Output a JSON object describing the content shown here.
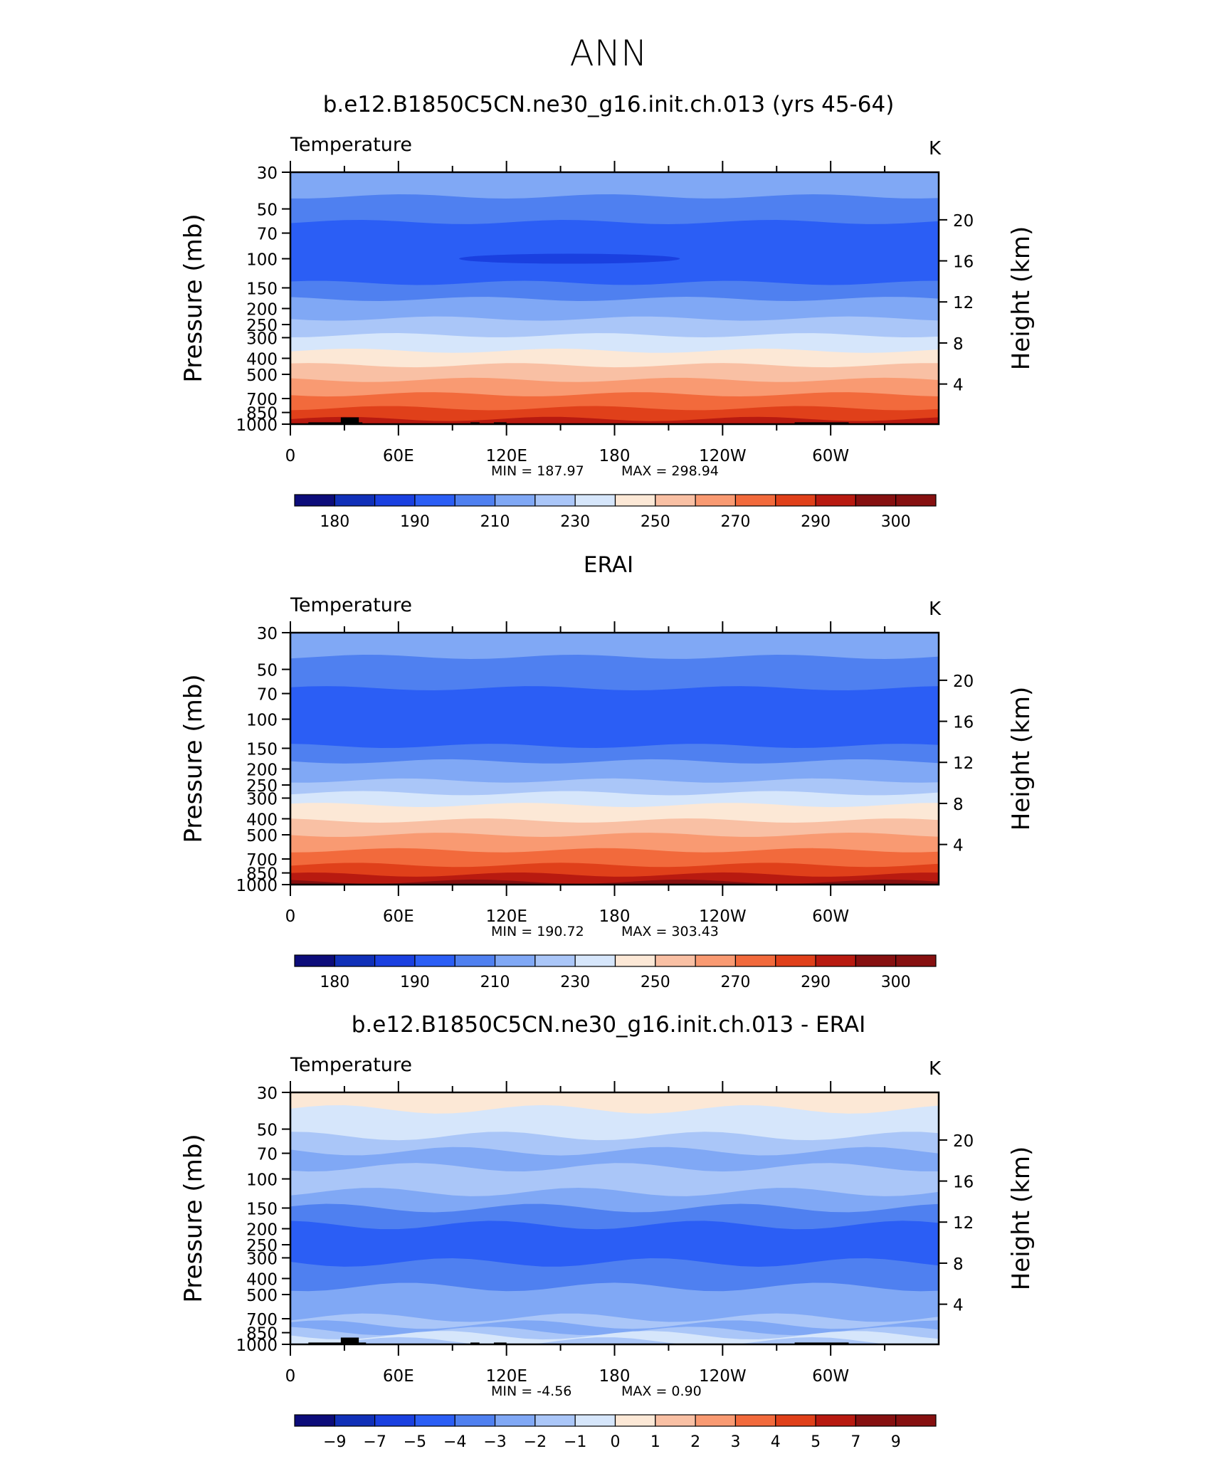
{
  "page_title": "ANN",
  "colors": {
    "bands13": [
      "#0c0c7a",
      "#1030b8",
      "#1a40e0",
      "#2b5ef5",
      "#4f80f0",
      "#80a8f5",
      "#aac6f8",
      "#d6e6fb",
      "#fce8d6",
      "#f9c0a4",
      "#f99a72",
      "#f26a3c",
      "#e0401a",
      "#b81a10",
      "#861010"
    ],
    "bands_diff": [
      "#0c0c7a",
      "#1030b8",
      "#1a40e0",
      "#2b5ef5",
      "#4f80f0",
      "#80a8f5",
      "#aac6f8",
      "#d6e6fb",
      "#fce8d6",
      "#f9c0a4",
      "#f99a72",
      "#f26a3c",
      "#e0401a",
      "#b81a10",
      "#861010"
    ],
    "topography": "#000000"
  },
  "chart_data": [
    {
      "type": "contour",
      "title": "b.e12.B1850C5CN.ne30_g16.init.ch.013 (yrs 45-64)",
      "variable": "Temperature",
      "units": "K",
      "ylabel": "Pressure  (mb)",
      "ylabel_right": "Height  (km)",
      "pressure_ticks": [
        "30",
        "50",
        "70",
        "100",
        "150",
        "200",
        "250",
        "300",
        "400",
        "500",
        "700",
        "850",
        "1000"
      ],
      "height_ticks": [
        "20",
        "16",
        "12",
        "8",
        "4"
      ],
      "lon_ticks": [
        "0",
        "60E",
        "120E",
        "180",
        "120W",
        "60W"
      ],
      "min_label": "MIN  =  187.97",
      "max_label": "MAX  =  298.94",
      "colorbar_labels": [
        "180",
        "190",
        "210",
        "230",
        "250",
        "270",
        "290",
        "300"
      ],
      "levels_K": [
        175,
        180,
        185,
        190,
        200,
        210,
        220,
        230,
        240,
        250,
        260,
        270,
        280,
        290,
        295,
        300
      ],
      "profile": [
        {
          "p": 30,
          "band": 5
        },
        {
          "p": 42,
          "band": 4
        },
        {
          "p": 60,
          "band": 3
        },
        {
          "p": 140,
          "band": 4
        },
        {
          "p": 175,
          "band": 5
        },
        {
          "p": 230,
          "band": 6
        },
        {
          "p": 290,
          "band": 7
        },
        {
          "p": 360,
          "band": 8
        },
        {
          "p": 440,
          "band": 9
        },
        {
          "p": 540,
          "band": 10
        },
        {
          "p": 660,
          "band": 11
        },
        {
          "p": 800,
          "band": 12
        },
        {
          "p": 930,
          "band": 13
        }
      ],
      "cold_core": {
        "lon_center": 155,
        "p": 100,
        "band": 2
      },
      "topography": [
        {
          "lon0": 10,
          "lon1": 40,
          "p": 975
        },
        {
          "lon0": 28,
          "lon1": 38,
          "p": 910
        },
        {
          "lon0": 100,
          "lon1": 105,
          "p": 975
        },
        {
          "lon0": 113,
          "lon1": 120,
          "p": 975
        },
        {
          "lon0": 280,
          "lon1": 310,
          "p": 975
        }
      ]
    },
    {
      "type": "contour",
      "title": "ERAI",
      "variable": "Temperature",
      "units": "K",
      "ylabel": "Pressure  (mb)",
      "ylabel_right": "Height  (km)",
      "pressure_ticks": [
        "30",
        "50",
        "70",
        "100",
        "150",
        "200",
        "250",
        "300",
        "400",
        "500",
        "700",
        "850",
        "1000"
      ],
      "height_ticks": [
        "20",
        "16",
        "12",
        "8",
        "4"
      ],
      "lon_ticks": [
        "0",
        "60E",
        "120E",
        "180",
        "120W",
        "60W"
      ],
      "min_label": "MIN  =  190.72",
      "max_label": "MAX  =  303.43",
      "colorbar_labels": [
        "180",
        "190",
        "210",
        "230",
        "250",
        "270",
        "290",
        "300"
      ],
      "levels_K": [
        175,
        180,
        185,
        190,
        200,
        210,
        220,
        230,
        240,
        250,
        260,
        270,
        280,
        290,
        295,
        300
      ],
      "profile": [
        {
          "p": 30,
          "band": 5
        },
        {
          "p": 42,
          "band": 4
        },
        {
          "p": 65,
          "band": 3
        },
        {
          "p": 145,
          "band": 4
        },
        {
          "p": 180,
          "band": 5
        },
        {
          "p": 235,
          "band": 6
        },
        {
          "p": 280,
          "band": 7
        },
        {
          "p": 330,
          "band": 8
        },
        {
          "p": 410,
          "band": 9
        },
        {
          "p": 500,
          "band": 10
        },
        {
          "p": 620,
          "band": 11
        },
        {
          "p": 760,
          "band": 12
        },
        {
          "p": 870,
          "band": 13
        },
        {
          "p": 960,
          "band": 14
        }
      ],
      "topography": []
    },
    {
      "type": "contour",
      "title": "b.e12.B1850C5CN.ne30_g16.init.ch.013 - ERAI",
      "variable": "Temperature",
      "units": "K",
      "ylabel": "Pressure  (mb)",
      "ylabel_right": "Height  (km)",
      "pressure_ticks": [
        "30",
        "50",
        "70",
        "100",
        "150",
        "200",
        "250",
        "300",
        "400",
        "500",
        "700",
        "850",
        "1000"
      ],
      "height_ticks": [
        "20",
        "16",
        "12",
        "8",
        "4"
      ],
      "lon_ticks": [
        "0",
        "60E",
        "120E",
        "180",
        "120W",
        "60W"
      ],
      "min_label": "MIN  =     -4.56",
      "max_label": "MAX  =      0.90",
      "colorbar_labels": [
        "−9",
        "−7",
        "−5",
        "−4",
        "−3",
        "−2",
        "−1",
        "0",
        "1",
        "2",
        "3",
        "4",
        "5",
        "7",
        "9"
      ],
      "levels_diff": [
        -9,
        -7,
        -5,
        -4,
        -3,
        -2,
        -1,
        0,
        1,
        2,
        3,
        4,
        5,
        7,
        9
      ],
      "profile": [
        {
          "p": 30,
          "band": 8
        },
        {
          "p": 38,
          "band": 7
        },
        {
          "p": 55,
          "band": 6
        },
        {
          "p": 68,
          "band": 5
        },
        {
          "p": 85,
          "band": 6
        },
        {
          "p": 120,
          "band": 5
        },
        {
          "p": 150,
          "band": 4
        },
        {
          "p": 190,
          "band": 3
        },
        {
          "p": 320,
          "band": 4
        },
        {
          "p": 450,
          "band": 5
        },
        {
          "p": 690,
          "band": 6
        },
        {
          "p": 760,
          "band": 5
        },
        {
          "p": 830,
          "band": 6
        },
        {
          "p": 880,
          "band": 7
        },
        {
          "p": 960,
          "band": 6
        }
      ],
      "topography": [
        {
          "lon0": 10,
          "lon1": 42,
          "p": 975
        },
        {
          "lon0": 28,
          "lon1": 38,
          "p": 910
        },
        {
          "lon0": 100,
          "lon1": 105,
          "p": 975
        },
        {
          "lon0": 113,
          "lon1": 120,
          "p": 975
        },
        {
          "lon0": 280,
          "lon1": 310,
          "p": 975
        }
      ]
    }
  ]
}
